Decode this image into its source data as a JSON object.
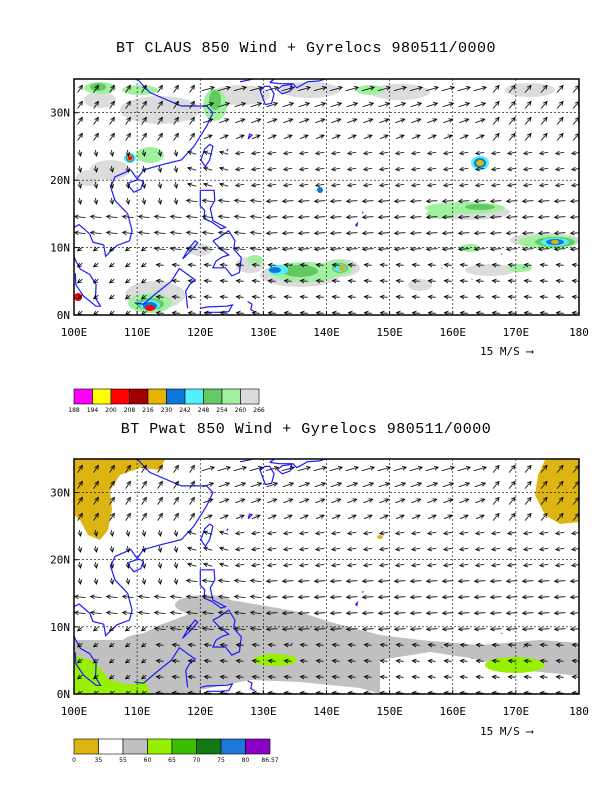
{
  "panels": [
    {
      "title": "BT CLAUS 850 Wind + Gyrelocs 980511/0000",
      "lat_labels": [
        "30N",
        "20N",
        "10N",
        "0N"
      ],
      "lon_labels": [
        "100E",
        "110E",
        "120E",
        "130E",
        "140E",
        "150E",
        "160E",
        "170E",
        "180"
      ],
      "reference_vector": "15 M/S",
      "colorbar": {
        "values": [
          "188",
          "194",
          "200",
          "208",
          "216",
          "230",
          "242",
          "248",
          "254",
          "260",
          "266"
        ],
        "colors": [
          "#ff00ff",
          "#ffff00",
          "#ff0000",
          "#a00000",
          "#e6b400",
          "#0a78dc",
          "#50f0ff",
          "#64c864",
          "#a0f0a0",
          "#dcdcdc"
        ]
      }
    },
    {
      "title": "BT Pwat 850 Wind + Gyrelocs 980511/0000",
      "lat_labels": [
        "30N",
        "20N",
        "10N",
        "0N"
      ],
      "lon_labels": [
        "100E",
        "110E",
        "120E",
        "130E",
        "140E",
        "150E",
        "160E",
        "170E",
        "180"
      ],
      "reference_vector": "15 M/S",
      "colorbar": {
        "values": [
          "0",
          "35",
          "55",
          "60",
          "65",
          "70",
          "75",
          "80",
          "86.57"
        ],
        "colors": [
          "#dcb414",
          "#ffffff",
          "#c0c0c0",
          "#96f000",
          "#3cbe00",
          "#147814",
          "#1e78dc",
          "#8c00c8"
        ]
      }
    }
  ]
}
